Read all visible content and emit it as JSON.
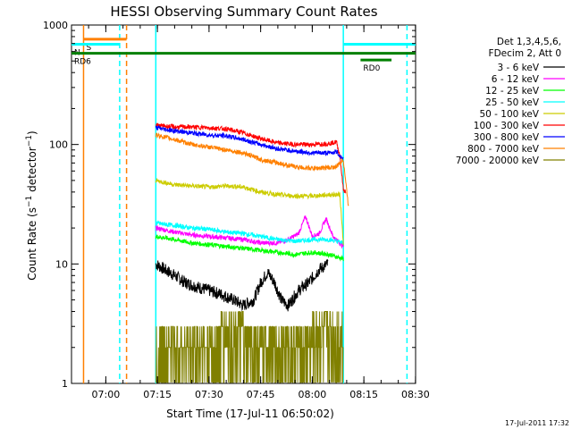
{
  "chart_data": {
    "type": "line",
    "title": "HESSI Observing Summary Count Rates",
    "xlabel": "Start Time (17-Jul-11 06:50:02)",
    "ylabel_parts": {
      "pre": "Count Rate (s",
      "sup1": "−1",
      "mid": " detector",
      "sup2": "−1",
      "post": ")"
    },
    "x_unit": "minutes since 06:50:02",
    "xlim": [
      0,
      100
    ],
    "ylim": [
      1,
      1000
    ],
    "yscale": "log",
    "grid": false,
    "x_ticks": [
      {
        "label": "07:00",
        "value": 9.97
      },
      {
        "label": "07:15",
        "value": 24.97
      },
      {
        "label": "07:30",
        "value": 39.97
      },
      {
        "label": "07:45",
        "value": 54.97
      },
      {
        "label": "08:00",
        "value": 69.97
      },
      {
        "label": "08:15",
        "value": 84.97
      },
      {
        "label": "08:30",
        "value": 99.97
      }
    ],
    "y_ticks": [
      {
        "label": "1",
        "value": 1
      },
      {
        "label": "10",
        "value": 10
      },
      {
        "label": "100",
        "value": 100
      },
      {
        "label": "1000",
        "value": 1000
      }
    ],
    "legend_header": [
      "Det 1,3,4,5,6,",
      "FDecim 2, Att 0"
    ],
    "legend_placement": "right",
    "series": [
      {
        "name": "3 - 6 keV",
        "color": "#000000",
        "x": [
          24.5,
          27,
          30,
          33,
          36,
          40,
          44,
          47,
          50,
          53,
          55,
          57,
          59,
          61,
          63,
          66,
          69,
          72,
          74.5
        ],
        "y": [
          10,
          9,
          8,
          7,
          6.5,
          6,
          5.5,
          5,
          4.5,
          5,
          7,
          8.5,
          7,
          5,
          4.5,
          6,
          7,
          9,
          10
        ]
      },
      {
        "name": "6 - 12 keV",
        "color": "#ff00ff",
        "x": [
          24.5,
          30,
          35,
          40,
          45,
          50,
          55,
          60,
          63,
          66,
          68,
          70,
          72,
          74,
          76,
          79
        ],
        "y": [
          20,
          18.5,
          17.5,
          17,
          16.5,
          16,
          15,
          15,
          16,
          18,
          25,
          17,
          18,
          24,
          17,
          14
        ]
      },
      {
        "name": "12 - 25 keV",
        "color": "#00ff00",
        "x": [
          24.5,
          30,
          35,
          40,
          45,
          50,
          55,
          60,
          65,
          70,
          75,
          79
        ],
        "y": [
          17,
          16,
          15,
          14.5,
          14,
          13.5,
          13,
          12.5,
          12,
          12.5,
          12,
          11
        ]
      },
      {
        "name": "25 - 50 keV",
        "color": "#00ffff",
        "x": [
          24.5,
          30,
          35,
          40,
          45,
          50,
          55,
          60,
          65,
          70,
          75,
          79
        ],
        "y": [
          22,
          21,
          20,
          19.5,
          18.5,
          18,
          17,
          16,
          15.5,
          16,
          16,
          15
        ]
      },
      {
        "name": "50 - 100 keV",
        "color": "#cccc00",
        "x": [
          24.5,
          30,
          35,
          40,
          45,
          50,
          55,
          60,
          65,
          70,
          75,
          78,
          79
        ],
        "y": [
          50,
          46,
          45,
          44,
          45,
          44,
          40,
          38,
          37,
          37,
          38,
          38,
          15
        ]
      },
      {
        "name": "100 - 300 keV",
        "color": "#ff0000",
        "x": [
          24.5,
          30,
          35,
          40,
          45,
          50,
          55,
          60,
          65,
          70,
          75,
          77,
          78,
          79,
          79.7
        ],
        "y": [
          145,
          140,
          140,
          138,
          135,
          125,
          112,
          103,
          100,
          100,
          102,
          105,
          80,
          42,
          40
        ]
      },
      {
        "name": "300 - 800 keV",
        "color": "#0000ff",
        "x": [
          24.5,
          30,
          35,
          40,
          45,
          50,
          55,
          60,
          65,
          70,
          75,
          77,
          79
        ],
        "y": [
          138,
          130,
          125,
          120,
          118,
          110,
          100,
          92,
          88,
          85,
          85,
          87,
          75
        ]
      },
      {
        "name": "800 - 7000 keV",
        "color": "#ff8000",
        "x": [
          24.5,
          30,
          35,
          40,
          45,
          50,
          55,
          60,
          65,
          70,
          75,
          77,
          79,
          80.5
        ],
        "y": [
          120,
          110,
          100,
          95,
          90,
          85,
          75,
          70,
          65,
          63,
          64,
          65,
          75,
          30
        ]
      },
      {
        "name": "7000 - 20000 keV",
        "color": "#808000",
        "x": [
          24.5,
          30,
          35,
          40,
          45,
          50,
          55,
          60,
          65,
          70,
          73,
          75,
          79
        ],
        "y": [
          1.5,
          2,
          2.5,
          1.8,
          3,
          2.5,
          1.8,
          2.2,
          1.5,
          2.5,
          3,
          2.5,
          3
        ]
      }
    ],
    "markers": [
      {
        "label": "S",
        "color": "#ff8000",
        "x_start": 3.5,
        "x_end": 16,
        "y": 760
      },
      {
        "label": "N",
        "color": "#00ffff",
        "x_start": 0,
        "x_end": 14,
        "y": 690
      },
      {
        "label": "RD6",
        "color": "#008000",
        "x_start": 0,
        "x_end": 100,
        "y": 580
      },
      {
        "label": "RD0",
        "color": "#008000",
        "x_start": 84,
        "x_end": 93,
        "y": 510
      }
    ],
    "vertical_lines": [
      {
        "color": "#ff8000",
        "style": "solid",
        "x": 3.5
      },
      {
        "color": "#00ffff",
        "style": "dashed",
        "x": 14
      },
      {
        "color": "#ff8000",
        "style": "dashed",
        "x": 16
      },
      {
        "color": "#00ffff",
        "style": "solid",
        "x": 24.5
      },
      {
        "color": "#00ffff",
        "style": "solid",
        "x": 79
      },
      {
        "color": "#00ffff",
        "style": "dashed",
        "x": 97.5
      }
    ],
    "cyan_segment_after": {
      "color": "#00ffff",
      "x_start": 79,
      "x_end": 100,
      "y": 690
    }
  },
  "footer_timestamp": "17-Jul-2011 17:32"
}
